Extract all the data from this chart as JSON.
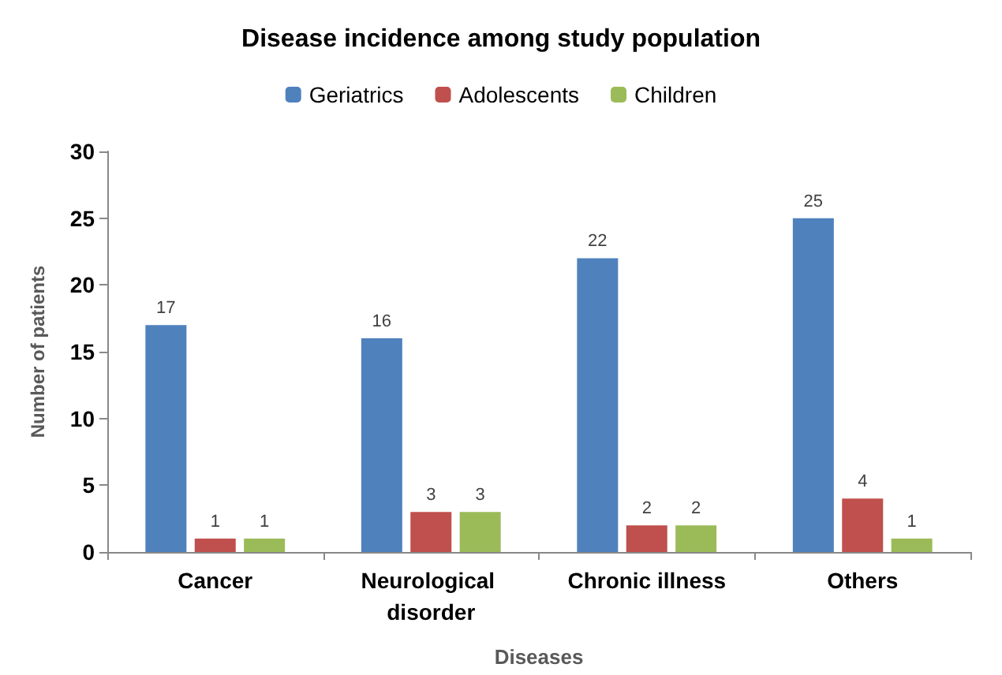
{
  "chart_data": {
    "type": "bar",
    "title": "Disease incidence among study population",
    "xlabel": "Diseases",
    "ylabel": "Number of patients",
    "categories": [
      "Cancer",
      "Neurological disorder",
      "Chronic illness",
      "Others"
    ],
    "series": [
      {
        "name": "Geriatrics",
        "color": "#4f81bd",
        "values": [
          17,
          16,
          22,
          25
        ]
      },
      {
        "name": "Adolescents",
        "color": "#c0504d",
        "values": [
          1,
          3,
          2,
          4
        ]
      },
      {
        "name": "Children",
        "color": "#9bbb59",
        "values": [
          1,
          3,
          2,
          1
        ]
      }
    ],
    "ylim": [
      0,
      30
    ],
    "yticks": [
      0,
      5,
      10,
      15,
      20,
      25,
      30
    ],
    "grid": false,
    "legend": "top",
    "data_labels": true
  }
}
